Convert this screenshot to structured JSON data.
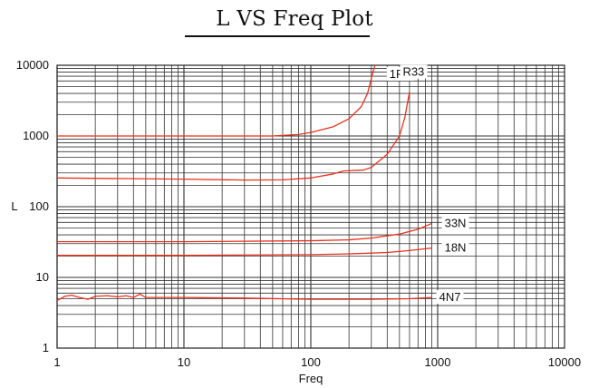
{
  "chart_data": {
    "type": "line",
    "title": "L VS Freq Plot",
    "xlabel": "Freq",
    "ylabel": "L",
    "xscale": "log",
    "yscale": "log",
    "xlim": [
      1,
      10000
    ],
    "ylim": [
      1,
      10000
    ],
    "x_ticks": [
      "1",
      "10",
      "100",
      "1000",
      "10000"
    ],
    "y_ticks": [
      "1",
      "10",
      "100",
      "1000",
      "10000"
    ],
    "grid": true,
    "legend": "inline labels at curve ends",
    "series_color": "#e8321e",
    "series": [
      {
        "name": "1R0",
        "x": [
          1,
          10,
          50,
          80,
          100,
          150,
          200,
          250,
          280,
          300,
          320
        ],
        "y": [
          1000,
          1000,
          1000,
          1050,
          1120,
          1350,
          1750,
          2600,
          4000,
          6500,
          10000
        ]
      },
      {
        "name": "R33",
        "x": [
          1,
          10,
          30,
          60,
          100,
          150,
          180,
          260,
          300,
          400,
          500,
          550,
          600
        ],
        "y": [
          255,
          245,
          238,
          240,
          255,
          290,
          320,
          330,
          360,
          550,
          1000,
          1800,
          4200
        ]
      },
      {
        "name": "33N",
        "x": [
          1,
          10,
          100,
          200,
          300,
          500,
          700,
          900
        ],
        "y": [
          32,
          32,
          33,
          34,
          36,
          41,
          48,
          58
        ]
      },
      {
        "name": "18N",
        "x": [
          1,
          10,
          100,
          200,
          400,
          600,
          900
        ],
        "y": [
          20.5,
          20.5,
          21,
          21.5,
          22.5,
          24,
          26
        ]
      },
      {
        "name": "4N7",
        "x": [
          1,
          1.15,
          1.3,
          1.5,
          1.75,
          2,
          2.5,
          3,
          3.5,
          4,
          4.5,
          5,
          10,
          30,
          100,
          300,
          600,
          900
        ],
        "y": [
          4.7,
          5.4,
          5.6,
          5.2,
          4.9,
          5.4,
          5.5,
          5.3,
          5.5,
          5.2,
          5.8,
          5.2,
          5.2,
          5.1,
          4.9,
          4.9,
          5.0,
          5.2
        ]
      }
    ]
  }
}
